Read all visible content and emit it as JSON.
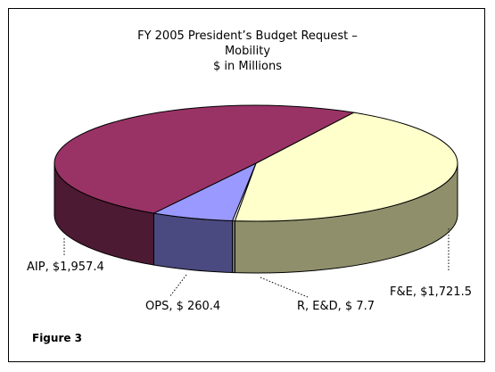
{
  "chart_data": {
    "type": "pie",
    "style": "3d",
    "title_lines": [
      "FY 2005 President’s Budget Request –",
      "Mobility",
      "$ in Millions"
    ],
    "slices": [
      {
        "label": "F&E, $1,721.5",
        "name": "F&E",
        "value": 1721.5,
        "top_color": "#ffffcc",
        "side_color": "#8f8f6b"
      },
      {
        "label": "R, E&D, $ 7.7",
        "name": "R, E&D",
        "value": 7.7,
        "top_color": "#ffffff",
        "side_color": "#808080"
      },
      {
        "label": "OPS, $ 260.4",
        "name": "OPS",
        "value": 260.4,
        "top_color": "#9999ff",
        "side_color": "#4a4a80"
      },
      {
        "label": "AIP, $1,957.4",
        "name": "AIP",
        "value": 1957.4,
        "top_color": "#993366",
        "side_color": "#4d1a33"
      }
    ],
    "legend": "none"
  },
  "figure_label": "Figure 3"
}
